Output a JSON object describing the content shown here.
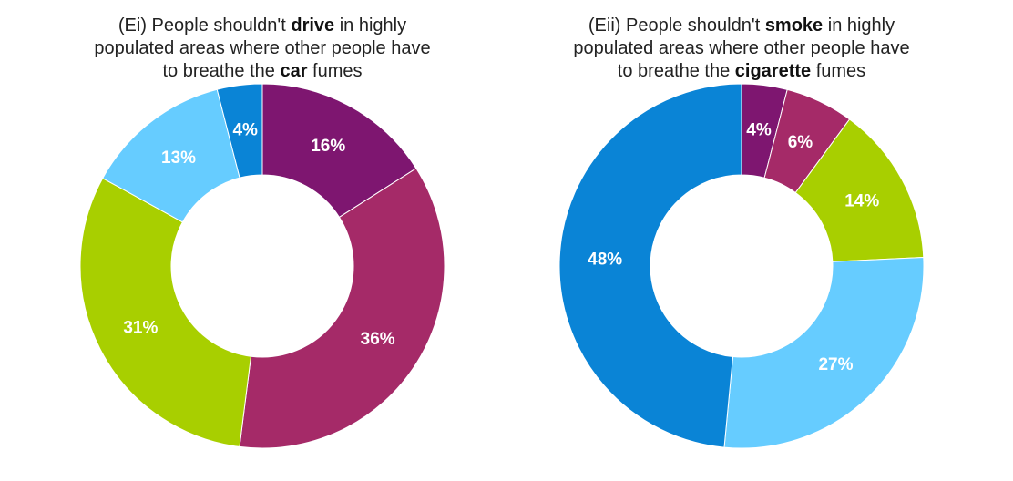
{
  "chart_data": [
    {
      "type": "pie",
      "donut": true,
      "title_parts": [
        {
          "text": "(Ei) People shouldn't ",
          "bold": false
        },
        {
          "text": "drive",
          "bold": true
        },
        {
          "text": " in highly",
          "bold": false
        },
        {
          "break": true
        },
        {
          "text": "populated areas where other people have",
          "bold": false
        },
        {
          "break": true
        },
        {
          "text": "to breathe the ",
          "bold": false
        },
        {
          "text": "car",
          "bold": true
        },
        {
          "text": " fumes",
          "bold": false
        }
      ],
      "slices": [
        {
          "value": 16,
          "label": "16%",
          "color": "#7e1670"
        },
        {
          "value": 36,
          "label": "36%",
          "color": "#a52a68"
        },
        {
          "value": 31,
          "label": "31%",
          "color": "#a8cf00"
        },
        {
          "value": 13,
          "label": "13%",
          "color": "#66ccff"
        },
        {
          "value": 4,
          "label": "4%",
          "color": "#0a84d6"
        }
      ]
    },
    {
      "type": "pie",
      "donut": true,
      "title_parts": [
        {
          "text": "(Eii) People shouldn't ",
          "bold": false
        },
        {
          "text": "smoke",
          "bold": true
        },
        {
          "text": " in highly",
          "bold": false
        },
        {
          "break": true
        },
        {
          "text": "populated areas where other people have",
          "bold": false
        },
        {
          "break": true
        },
        {
          "text": "to breathe the ",
          "bold": false
        },
        {
          "text": "cigarette",
          "bold": true
        },
        {
          "text": " fumes",
          "bold": false
        }
      ],
      "slices": [
        {
          "value": 4,
          "label": "4%",
          "color": "#7e1670"
        },
        {
          "value": 6,
          "label": "6%",
          "color": "#a52a68"
        },
        {
          "value": 14,
          "label": "14%",
          "color": "#a8cf00"
        },
        {
          "value": 27,
          "label": "27%",
          "color": "#66ccff"
        },
        {
          "value": 48,
          "label": "48%",
          "color": "#0a84d6"
        }
      ]
    }
  ]
}
